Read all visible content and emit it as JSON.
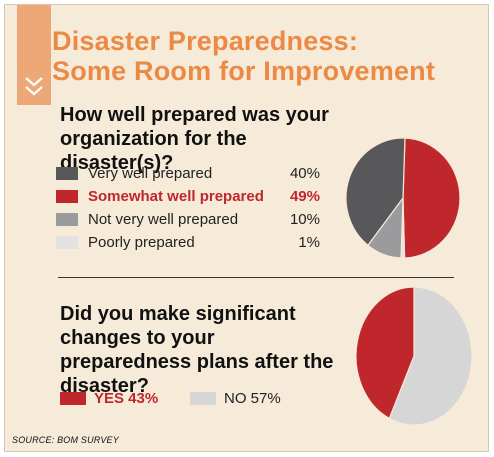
{
  "title": {
    "line1": "Disaster Preparedness:",
    "line2": "Some Room for Improvement"
  },
  "colors": {
    "accent_orange": "#eb8a45",
    "tab_orange": "#eea877",
    "background": "#f6ead9",
    "highlight_red": "#c0272d",
    "dark_gray": "#58585a",
    "mid_gray": "#9b9b9d",
    "light_gray": "#d6d6d6"
  },
  "icons": {
    "tab": "double-chevron-down-icon"
  },
  "source": "SOURCE: BOM SURVEY",
  "chart_data": [
    {
      "type": "pie",
      "title": "How well prepared was your organization for the disaster(s)?",
      "slices": [
        {
          "label": "Very well prepared",
          "value": 40,
          "display": "40%",
          "color": "#58585a",
          "highlight": false
        },
        {
          "label": "Somewhat well prepared",
          "value": 49,
          "display": "49%",
          "color": "#c0272d",
          "highlight": true
        },
        {
          "label": "Not very well prepared",
          "value": 10,
          "display": "10%",
          "color": "#9b9b9d",
          "highlight": false
        },
        {
          "label": "Poorly prepared",
          "value": 1,
          "display": "1%",
          "color": "#e2e2e2",
          "highlight": false
        }
      ]
    },
    {
      "type": "pie",
      "title": "Did you make significant changes to your preparedness plans after the disaster?",
      "slices": [
        {
          "label": "YES 43%",
          "value": 43,
          "color": "#c0272d",
          "highlight": true
        },
        {
          "label": "NO 57%",
          "value": 57,
          "color": "#d6d6d6",
          "highlight": false
        }
      ]
    }
  ]
}
